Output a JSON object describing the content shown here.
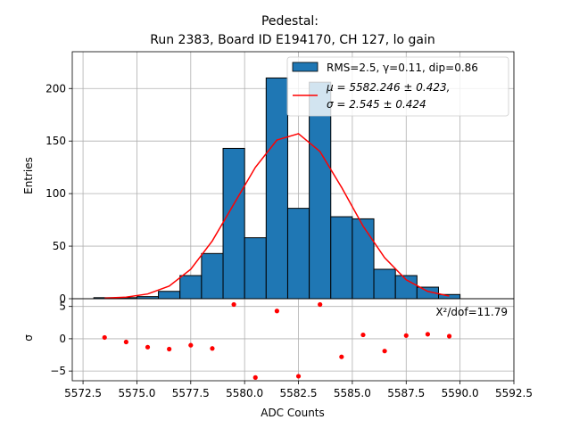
{
  "chart_data": {
    "type": "bar",
    "title_line1": "Pedestal:",
    "title_line2": "Run 2383, Board ID E194170, CH 127, lo gain",
    "xlabel": "ADC Counts",
    "ylabel_top": "Entries",
    "ylabel_bottom": "σ",
    "xlim": [
      5572.0,
      5592.5
    ],
    "ylim_top": [
      0,
      235
    ],
    "ylim_bottom": [
      -6.5,
      6.2
    ],
    "x_ticks": [
      5572.5,
      5575.0,
      5577.5,
      5580.0,
      5582.5,
      5585.0,
      5587.5,
      5590.0,
      5592.5
    ],
    "x_tick_labels": [
      "5572.5",
      "5575.0",
      "5577.5",
      "5580.0",
      "5582.5",
      "5585.0",
      "5587.5",
      "5590.0",
      "5592.5"
    ],
    "y_ticks_top": [
      0,
      50,
      100,
      150,
      200
    ],
    "y_tick_labels_top": [
      "0",
      "50",
      "100",
      "150",
      "200"
    ],
    "y_ticks_bottom": [
      -5,
      0,
      5
    ],
    "y_tick_labels_bottom": [
      "−5",
      "0",
      "5"
    ],
    "bar_color": "#1f77b4",
    "fit_color": "#ff0000",
    "histogram": {
      "bin_edges": [
        5573,
        5574,
        5575,
        5576,
        5577,
        5578,
        5579,
        5580,
        5581,
        5582,
        5583,
        5584,
        5585,
        5586,
        5587,
        5588,
        5589,
        5590
      ],
      "counts": [
        1,
        1,
        2,
        7,
        22,
        43,
        143,
        58,
        210,
        86,
        206,
        78,
        76,
        28,
        22,
        11,
        4
      ]
    },
    "fit_curve": {
      "x": [
        5573.5,
        5574.5,
        5575.5,
        5576.5,
        5577.5,
        5578.5,
        5579.5,
        5580.5,
        5581.5,
        5582.5,
        5583.5,
        5584.5,
        5585.5,
        5586.5,
        5587.5,
        5588.5,
        5589.5
      ],
      "y": [
        0.5,
        1.5,
        4.5,
        12,
        28,
        55,
        90,
        125,
        151,
        157,
        140,
        106,
        69,
        39,
        18,
        7,
        2.5
      ]
    },
    "residuals": {
      "x": [
        5573.5,
        5574.5,
        5575.5,
        5576.5,
        5577.5,
        5578.5,
        5579.5,
        5580.5,
        5581.5,
        5582.5,
        5583.5,
        5584.5,
        5585.5,
        5586.5,
        5587.5,
        5588.5,
        5589.5
      ],
      "y": [
        0.2,
        -0.5,
        -1.3,
        -1.6,
        -1.0,
        -1.5,
        5.3,
        -6.0,
        4.3,
        -5.8,
        5.3,
        -2.8,
        0.6,
        -1.9,
        0.5,
        0.7,
        0.4
      ]
    },
    "legend": {
      "position": "top-right",
      "hist_label": "RMS=2.5, γ=0.11, dip=0.86",
      "fit_label_line1": "μ = 5582.246 ± 0.423,",
      "fit_label_line2": "σ = 2.545 ± 0.424"
    },
    "annotation": "X²/dof=11.79"
  }
}
